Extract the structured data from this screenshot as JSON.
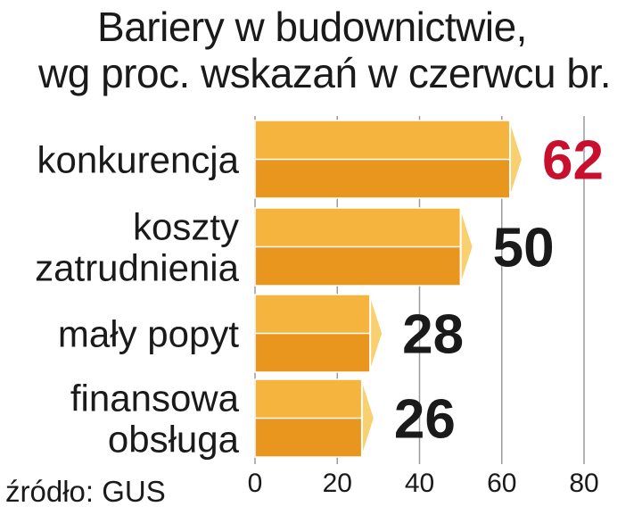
{
  "chart_data": {
    "type": "bar",
    "orientation": "horizontal",
    "title_lines": [
      "Bariery w budownictwie,",
      "wg proc. wskazań w czerwcu br."
    ],
    "categories": [
      [
        "konkurencja"
      ],
      [
        "koszty",
        "zatrudnienia"
      ],
      [
        "mały popyt"
      ],
      [
        "finansowa",
        "obsługa"
      ]
    ],
    "values": [
      62,
      50,
      28,
      26
    ],
    "value_labels": [
      "62",
      "50",
      "28",
      "26"
    ],
    "highlight_index": 0,
    "xlim": [
      0,
      80
    ],
    "xticks": [
      0,
      20,
      40,
      60,
      80
    ],
    "xtick_labels": [
      "0",
      "20",
      "40",
      "60",
      "80"
    ],
    "grid": "vertical",
    "source": "źródło: GUS"
  },
  "colors": {
    "bar_top": "#f4b43d",
    "bar_bottom": "#e8961e",
    "bar_cap": "#f8d070",
    "bar_edge": "#ffffff",
    "highlight_value": "#c8102e",
    "text": "#1a1a1a",
    "grid": "#9a9a9a"
  }
}
